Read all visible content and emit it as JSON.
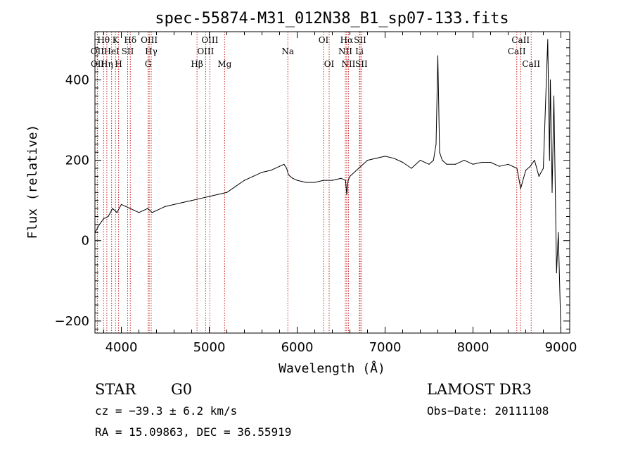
{
  "chart_data": {
    "type": "line",
    "title": "spec-55874-M31_012N38_B1_sp07-133.fits",
    "xlabel": "Wavelength (Å)",
    "ylabel": "Flux (relative)",
    "xlim": [
      3700,
      9100
    ],
    "ylim": [
      -230,
      520
    ],
    "x_ticks": [
      4000,
      5000,
      6000,
      7000,
      8000,
      9000
    ],
    "y_ticks": [
      -200,
      0,
      200,
      400
    ],
    "x": [
      3700,
      3750,
      3800,
      3850,
      3900,
      3950,
      4000,
      4050,
      4100,
      4150,
      4200,
      4250,
      4300,
      4350,
      4400,
      4500,
      4600,
      4700,
      4800,
      4900,
      5000,
      5100,
      5200,
      5300,
      5400,
      5500,
      5600,
      5700,
      5800,
      5850,
      5880,
      5900,
      5920,
      5950,
      6000,
      6100,
      6200,
      6300,
      6400,
      6500,
      6550,
      6564,
      6580,
      6600,
      6700,
      6800,
      6900,
      7000,
      7100,
      7200,
      7300,
      7400,
      7500,
      7550,
      7580,
      7600,
      7620,
      7650,
      7700,
      7800,
      7900,
      8000,
      8100,
      8200,
      8300,
      8400,
      8500,
      8542,
      8600,
      8650,
      8700,
      8750,
      8800,
      8850,
      8870,
      8880,
      8900,
      8920,
      8950,
      8970,
      9000
    ],
    "values": [
      20,
      40,
      55,
      60,
      80,
      70,
      90,
      85,
      80,
      75,
      70,
      75,
      80,
      70,
      75,
      85,
      90,
      95,
      100,
      105,
      110,
      115,
      120,
      135,
      150,
      160,
      170,
      175,
      185,
      190,
      180,
      165,
      160,
      155,
      150,
      145,
      145,
      150,
      150,
      155,
      150,
      115,
      150,
      160,
      180,
      200,
      205,
      210,
      205,
      195,
      180,
      200,
      190,
      200,
      240,
      460,
      220,
      200,
      190,
      190,
      200,
      190,
      195,
      195,
      185,
      190,
      180,
      130,
      175,
      185,
      200,
      160,
      180,
      500,
      200,
      400,
      120,
      360,
      -80,
      20,
      -230
    ],
    "emission_lines": [
      {
        "name": "OII",
        "x": 3727,
        "row": 2
      },
      {
        "name": "OII",
        "x": 3729,
        "row": 3
      },
      {
        "name": "Hθ",
        "x": 3798,
        "row": 1
      },
      {
        "name": "Hη",
        "x": 3835,
        "row": 3
      },
      {
        "name": "HeI",
        "x": 3889,
        "row": 2
      },
      {
        "name": "K",
        "x": 3934,
        "row": 1
      },
      {
        "name": "H",
        "x": 3969,
        "row": 3
      },
      {
        "name": "SII",
        "x": 4072,
        "row": 2
      },
      {
        "name": "Hδ",
        "x": 4102,
        "row": 1
      },
      {
        "name": "OIII",
        "x": 4317,
        "row": 1
      },
      {
        "name": "Hγ",
        "x": 4340,
        "row": 2
      },
      {
        "name": "G",
        "x": 4304,
        "row": 3
      },
      {
        "name": "Hβ",
        "x": 4861,
        "row": 3
      },
      {
        "name": "OIII",
        "x": 4959,
        "row": 2
      },
      {
        "name": "OIII",
        "x": 5007,
        "row": 1
      },
      {
        "name": "Mg",
        "x": 5175,
        "row": 3
      },
      {
        "name": "Na",
        "x": 5894,
        "row": 2
      },
      {
        "name": "OI",
        "x": 6300,
        "row": 1
      },
      {
        "name": "OI",
        "x": 6364,
        "row": 3
      },
      {
        "name": "NII",
        "x": 6548,
        "row": 2
      },
      {
        "name": "Hα",
        "x": 6563,
        "row": 1
      },
      {
        "name": "NII",
        "x": 6583,
        "row": 3
      },
      {
        "name": "SII",
        "x": 6716,
        "row": 1
      },
      {
        "name": "Li",
        "x": 6708,
        "row": 2
      },
      {
        "name": "SII",
        "x": 6731,
        "row": 3
      },
      {
        "name": "CaII",
        "x": 8498,
        "row": 2
      },
      {
        "name": "CaII",
        "x": 8542,
        "row": 1
      },
      {
        "name": "CaII",
        "x": 8662,
        "row": 3
      }
    ]
  },
  "footer": {
    "object_class": "STAR",
    "subclass": "G0",
    "survey": "LAMOST DR3",
    "redshift": "cz = −39.3 ± 6.2 km/s",
    "obs_date": "Obs−Date: 20111108",
    "coords": "RA =  15.09863, DEC =  36.55919"
  },
  "colors": {
    "spectrum": "#000000",
    "line_marker": "#cc2222",
    "axis": "#000000",
    "background": "#ffffff"
  }
}
